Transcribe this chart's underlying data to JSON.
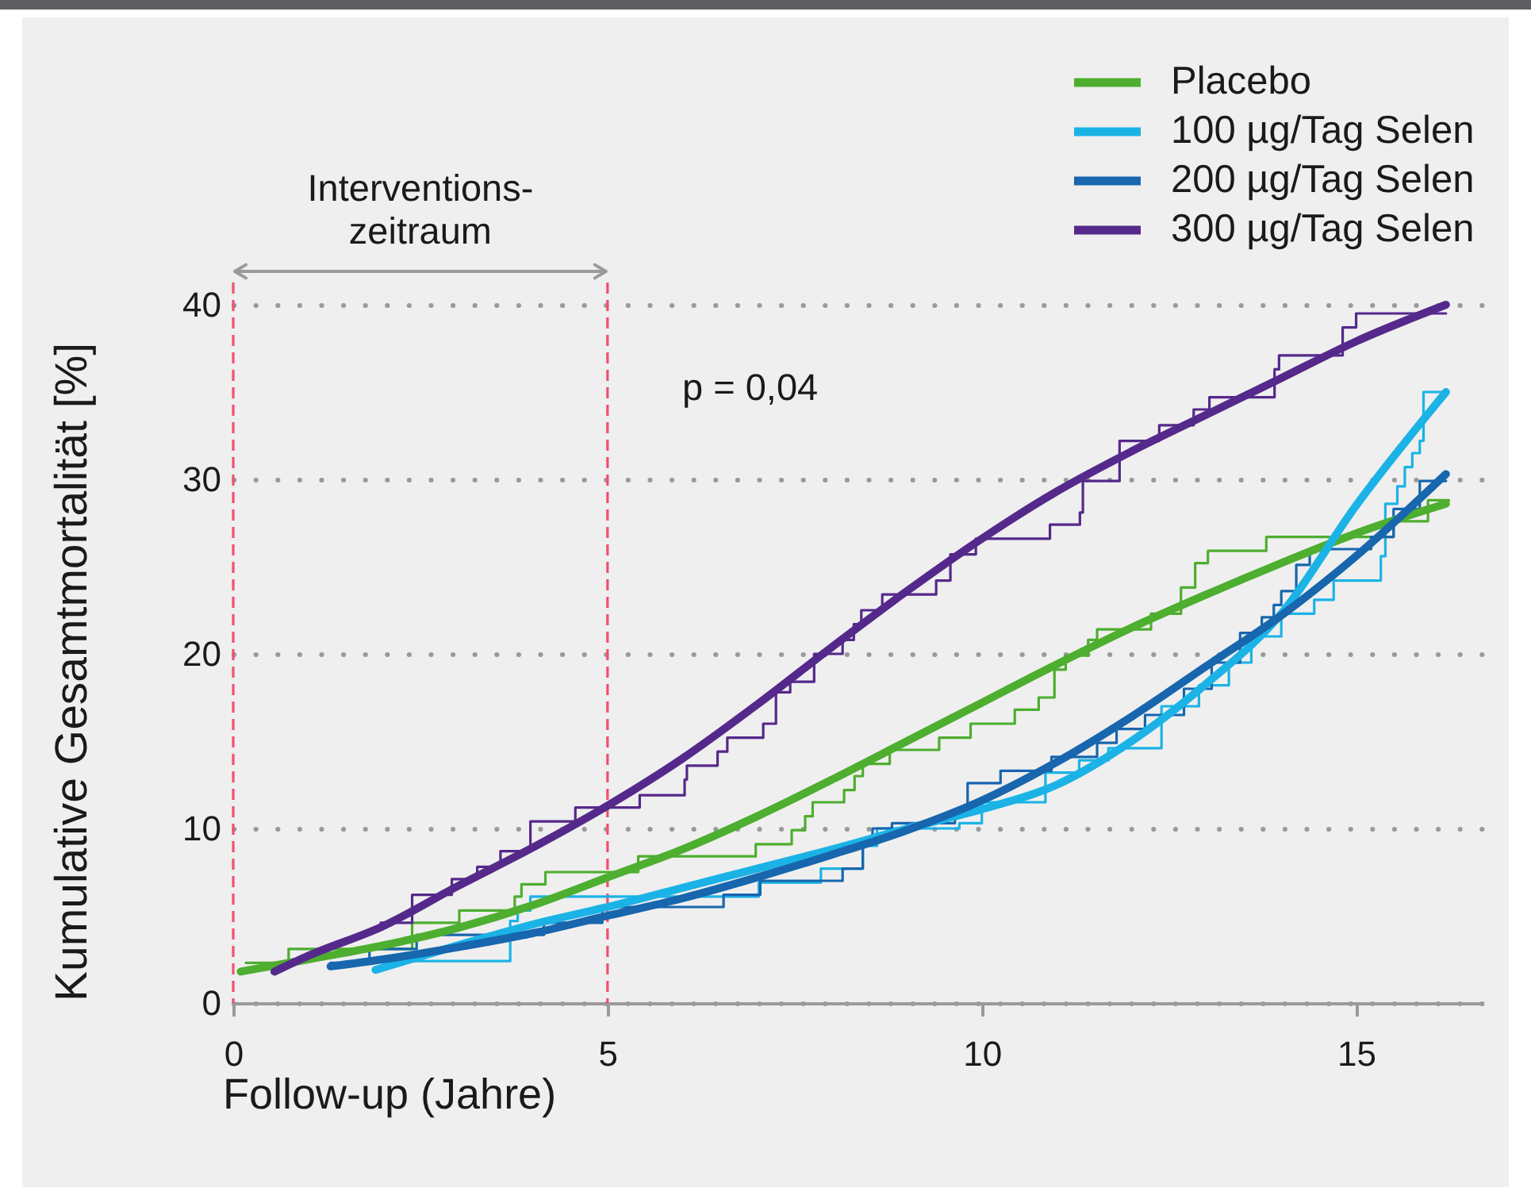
{
  "chart_data": {
    "type": "line",
    "xlabel": "Follow-up (Jahre)",
    "ylabel": "Kumulative Gesamtmortalität [%]",
    "xlim": [
      0,
      16.7
    ],
    "ylim": [
      0,
      40
    ],
    "xticks": [
      0,
      5,
      10,
      15
    ],
    "yticks": [
      0,
      10,
      20,
      30,
      40
    ],
    "grid": "y",
    "legend": "top right",
    "ref_lines": [
      {
        "axis": "x",
        "value": 0,
        "color": "#f0506e",
        "line_style": "dashed"
      },
      {
        "axis": "x",
        "value": 5,
        "color": "#f0506e",
        "line_style": "dashed"
      }
    ],
    "annotations": [
      "Interventions-\nzeitraum",
      "p = 0,04"
    ],
    "series": [
      {
        "type": "step",
        "color": "#4dae2f",
        "x": [
          0.17,
          0.74,
          2.39,
          3.02,
          3.76,
          3.85,
          4.17,
          5.41,
          6.98,
          7.46,
          7.64,
          7.74,
          8.16,
          8.3,
          8.41,
          8.77,
          9.43,
          9.85,
          10.44,
          10.76,
          10.97,
          11.12,
          11.42,
          11.54,
          12.26,
          12.66,
          12.85,
          13.02,
          13.8,
          15.5,
          15.96,
          16.24
        ],
        "values": [
          2.3,
          3.1,
          4.6,
          5.3,
          6.1,
          6.8,
          7.5,
          8.4,
          9.1,
          9.9,
          10.7,
          11.5,
          12.2,
          13.0,
          13.7,
          14.5,
          15.2,
          16.0,
          16.8,
          17.5,
          19.1,
          19.9,
          20.8,
          21.4,
          22.3,
          23.8,
          25.2,
          25.9,
          26.7,
          27.6,
          28.8,
          28.8
        ]
      },
      {
        "type": "step",
        "color": "#1bb3e6",
        "x": [
          1.92,
          3.7,
          3.8,
          3.97,
          7.02,
          7.85,
          8.41,
          8.6,
          9.7,
          10.0,
          10.85,
          11.3,
          11.69,
          12.4,
          12.9,
          13.3,
          13.6,
          14.0,
          14.44,
          14.7,
          15.33,
          15.39,
          15.55,
          15.65,
          15.75,
          15.85,
          15.9,
          16.2
        ],
        "values": [
          2.4,
          4.7,
          5.3,
          6.1,
          6.9,
          7.7,
          9.0,
          10.0,
          10.3,
          11.5,
          13.2,
          13.9,
          14.6,
          17.0,
          18.2,
          19.5,
          21.0,
          22.3,
          23.1,
          24.2,
          25.6,
          28.6,
          29.6,
          30.7,
          31.5,
          32.2,
          35.0,
          35.0
        ]
      },
      {
        "type": "step",
        "color": "#1766ae",
        "x": [
          1.3,
          1.82,
          2.45,
          4.15,
          4.93,
          6.55,
          7.04,
          8.14,
          8.41,
          8.54,
          8.8,
          9.64,
          9.81,
          10.25,
          10.93,
          11.54,
          11.8,
          12.18,
          12.7,
          13.07,
          13.45,
          13.74,
          13.9,
          14.0,
          14.2,
          14.38,
          15.2,
          15.5,
          15.85,
          16.2
        ],
        "values": [
          2.3,
          3.1,
          3.9,
          4.6,
          5.5,
          6.2,
          7.0,
          7.7,
          9.3,
          10.0,
          10.3,
          10.9,
          12.6,
          13.3,
          14.1,
          14.9,
          15.7,
          16.5,
          18.0,
          19.5,
          21.2,
          22.1,
          22.8,
          23.6,
          25.1,
          26.0,
          26.7,
          28.3,
          29.9,
          29.9
        ]
      },
      {
        "type": "step",
        "color": "#55298b",
        "x": [
          1.97,
          2.39,
          2.92,
          3.26,
          3.57,
          3.97,
          4.57,
          5.43,
          6.03,
          6.06,
          6.47,
          6.6,
          7.08,
          7.25,
          7.44,
          7.76,
          8.14,
          8.29,
          8.39,
          8.67,
          9.39,
          9.58,
          9.92,
          10.91,
          11.31,
          11.35,
          11.84,
          12.37,
          12.83,
          13.04,
          13.91,
          13.97,
          14.82,
          15.0,
          16.2
        ],
        "values": [
          4.6,
          6.2,
          7.1,
          7.8,
          8.7,
          10.4,
          11.2,
          11.9,
          12.8,
          13.6,
          14.4,
          15.2,
          16.0,
          17.8,
          18.4,
          20.0,
          20.8,
          21.7,
          22.5,
          23.4,
          24.2,
          25.7,
          26.6,
          27.4,
          28.1,
          29.9,
          32.2,
          33.1,
          34.0,
          34.7,
          36.3,
          37.1,
          38.7,
          39.5,
          39.5
        ]
      },
      {
        "name": "Placebo",
        "color": "#4dae2f",
        "x": [
          0.1,
          1,
          2,
          3,
          4,
          5,
          6,
          7,
          8,
          9,
          10,
          11,
          12,
          13,
          14,
          15,
          16.2
        ],
        "values": [
          1.8,
          2.5,
          3.3,
          4.3,
          5.6,
          7.2,
          8.8,
          10.7,
          12.8,
          15.0,
          17.2,
          19.4,
          21.5,
          23.4,
          25.2,
          26.9,
          28.6
        ]
      },
      {
        "name": "100 µg/Tag Selen",
        "color": "#1bb3e6",
        "x": [
          1.9,
          3,
          4,
          5,
          6,
          7,
          8,
          9,
          10,
          11,
          12,
          13,
          14,
          15,
          16.2
        ],
        "values": [
          1.9,
          3.3,
          4.5,
          5.5,
          6.6,
          7.7,
          8.8,
          10.0,
          11.1,
          12.5,
          15.0,
          18.3,
          22.3,
          28.5,
          35.0
        ]
      },
      {
        "name": "200 µg/Tag Selen",
        "color": "#1766ae",
        "x": [
          1.3,
          2,
          3,
          4,
          5,
          6,
          7,
          8,
          9,
          10,
          11,
          12,
          13,
          14,
          15,
          16.2
        ],
        "values": [
          2.1,
          2.5,
          3.2,
          4.0,
          5.0,
          6.0,
          7.2,
          8.5,
          9.9,
          11.6,
          13.8,
          16.4,
          19.3,
          22.2,
          25.6,
          30.3
        ]
      },
      {
        "name": "300 µg/Tag Selen",
        "color": "#55298b",
        "x": [
          0.55,
          1,
          2,
          3,
          4,
          5,
          6,
          7,
          8,
          9,
          10,
          11,
          12,
          13,
          14,
          15,
          16.2
        ],
        "values": [
          1.8,
          2.7,
          4.4,
          6.7,
          8.9,
          11.3,
          14.0,
          17.1,
          20.4,
          23.6,
          26.6,
          29.3,
          31.6,
          33.7,
          35.8,
          37.9,
          40.0
        ]
      }
    ]
  }
}
